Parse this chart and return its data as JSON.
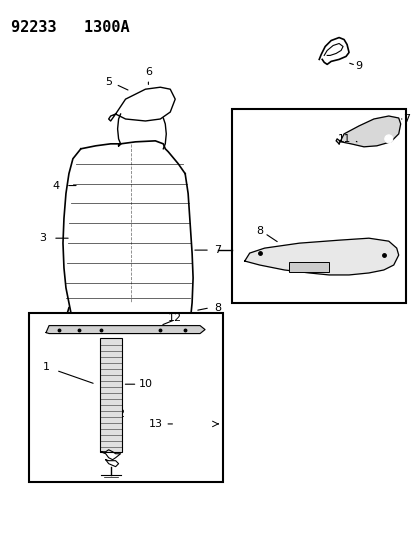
{
  "title": "92233   1300A",
  "background_color": "#ffffff",
  "line_color": "#000000",
  "figsize": [
    4.14,
    5.33
  ],
  "dpi": 100
}
